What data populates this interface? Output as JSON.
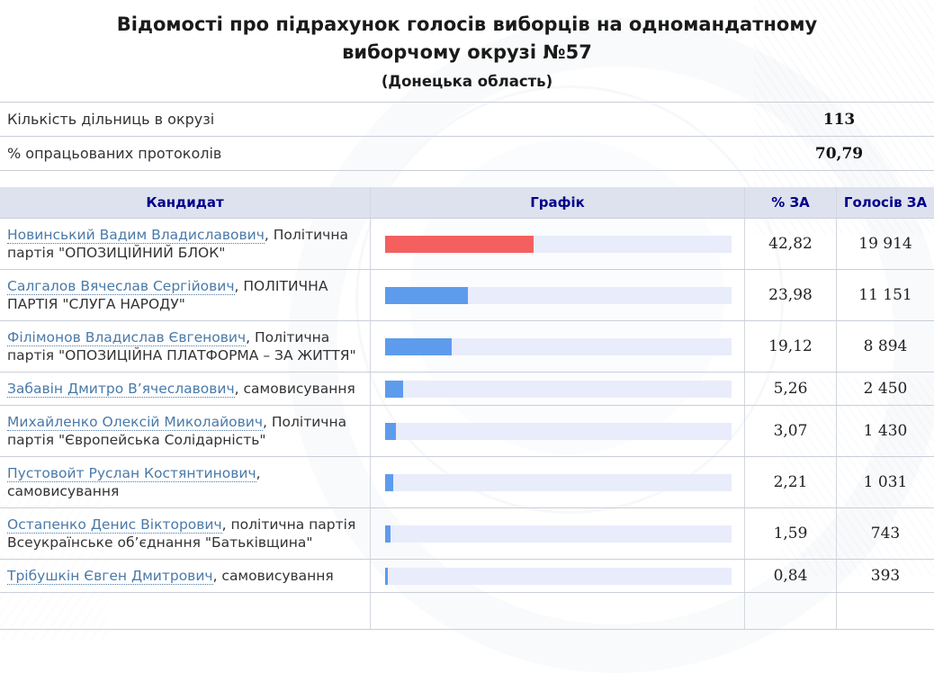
{
  "colors": {
    "header_bg": "#dee2ee",
    "header_text": "#00008b",
    "track": "#e9ecfa",
    "link": "#4a7aa8",
    "bar_red": "#f45f5f",
    "bar_blue": "#5d9cec"
  },
  "header": {
    "title": "Відомості про підрахунок голосів виборців на одномандатному виборчому окрузі №57",
    "subtitle": "(Донецька область)"
  },
  "info": {
    "rows": [
      {
        "label": "Кількість дільниць в окрузі",
        "value": "113"
      },
      {
        "label": "% опрацьованих протоколів",
        "value": "70,79"
      }
    ]
  },
  "table": {
    "headers": {
      "candidate": "Кандидат",
      "chart": "Графік",
      "percent": "% ЗА",
      "votes": "Голосів ЗА"
    },
    "rows": [
      {
        "name": "Новинський Вадим Владиславович",
        "party": ", Політична партія \"ОПОЗИЦІЙНИЙ БЛОК\"",
        "percent": "42,82",
        "votes": "19 914",
        "pct": 42.82,
        "color": "#f45f5f"
      },
      {
        "name": "Салгалов Вячеслав Сергійович",
        "party": ", ПОЛІТИЧНА ПАРТІЯ \"СЛУГА НАРОДУ\"",
        "percent": "23,98",
        "votes": "11 151",
        "pct": 23.98,
        "color": "#5d9cec"
      },
      {
        "name": "Філімонов Владислав Євгенович",
        "party": ", Політична партія \"ОПОЗИЦІЙНА ПЛАТФОРМА – ЗА ЖИТТЯ\"",
        "percent": "19,12",
        "votes": "8 894",
        "pct": 19.12,
        "color": "#5d9cec"
      },
      {
        "name": "Забавін Дмитро В’ячеславович",
        "party": ", самовисування",
        "percent": "5,26",
        "votes": "2 450",
        "pct": 5.26,
        "color": "#5d9cec"
      },
      {
        "name": "Михайленко Олексій Миколайович",
        "party": ", Політична партія \"Європейська Солідарність\"",
        "percent": "3,07",
        "votes": "1 430",
        "pct": 3.07,
        "color": "#5d9cec"
      },
      {
        "name": "Пустовойт Руслан Костянтинович",
        "party": ", самовисування",
        "percent": "2,21",
        "votes": "1 031",
        "pct": 2.21,
        "color": "#5d9cec"
      },
      {
        "name": "Остапенко Денис Вікторович",
        "party": ", політична партія Всеукраїнське об’єднання \"Батьківщина\"",
        "percent": "1,59",
        "votes": "743",
        "pct": 1.59,
        "color": "#5d9cec"
      },
      {
        "name": "Трібушкін Євген Дмитрович",
        "party": ", самовисування",
        "percent": "0,84",
        "votes": "393",
        "pct": 0.84,
        "color": "#5d9cec"
      }
    ]
  }
}
